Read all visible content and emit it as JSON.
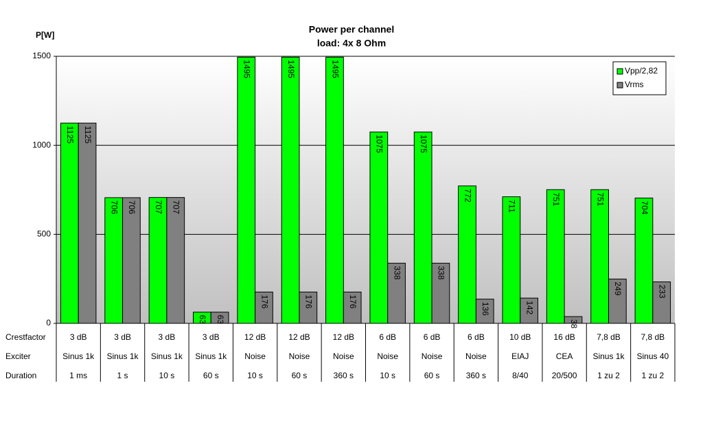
{
  "chart_data": {
    "type": "bar",
    "title": "Power per channel",
    "subtitle": "load:  4x 8 Ohm",
    "y_label": "P[W]",
    "category_levels": [
      "Crestfactor",
      "Exciter",
      "Duration"
    ],
    "categories": [
      [
        "3 dB",
        "Sinus 1k",
        "1 ms"
      ],
      [
        "3 dB",
        "Sinus 1k",
        "1 s"
      ],
      [
        "3 dB",
        "Sinus 1k",
        "10 s"
      ],
      [
        "3 dB",
        "Sinus 1k",
        "60 s"
      ],
      [
        "12 dB",
        "Noise",
        "10 s"
      ],
      [
        "12 dB",
        "Noise",
        "60 s"
      ],
      [
        "12 dB",
        "Noise",
        "360 s"
      ],
      [
        "6 dB",
        "Noise",
        "10 s"
      ],
      [
        "6 dB",
        "Noise",
        "60 s"
      ],
      [
        "6 dB",
        "Noise",
        "360 s"
      ],
      [
        "10 dB",
        "EIAJ",
        "8/40"
      ],
      [
        "16 dB",
        "CEA",
        "20/500"
      ],
      [
        "7,8 dB",
        "Sinus 1k",
        "1 zu 2"
      ],
      [
        "7,8 dB",
        "Sinus 40",
        "1 zu 2"
      ]
    ],
    "series": [
      {
        "name": "Vpp/2,82",
        "color": "#00ff00",
        "values": [
          1125,
          706,
          707,
          63,
          1495,
          1495,
          1495,
          1075,
          1075,
          772,
          711,
          751,
          751,
          704
        ]
      },
      {
        "name": "Vrms",
        "color": "#808080",
        "values": [
          1125,
          706,
          707,
          63,
          176,
          176,
          176,
          338,
          338,
          136,
          142,
          38,
          249,
          233
        ]
      }
    ],
    "ylim": [
      0,
      1500
    ],
    "yticks": [
      0,
      500,
      1000,
      1500
    ],
    "grid": true,
    "legend": "top-right"
  }
}
